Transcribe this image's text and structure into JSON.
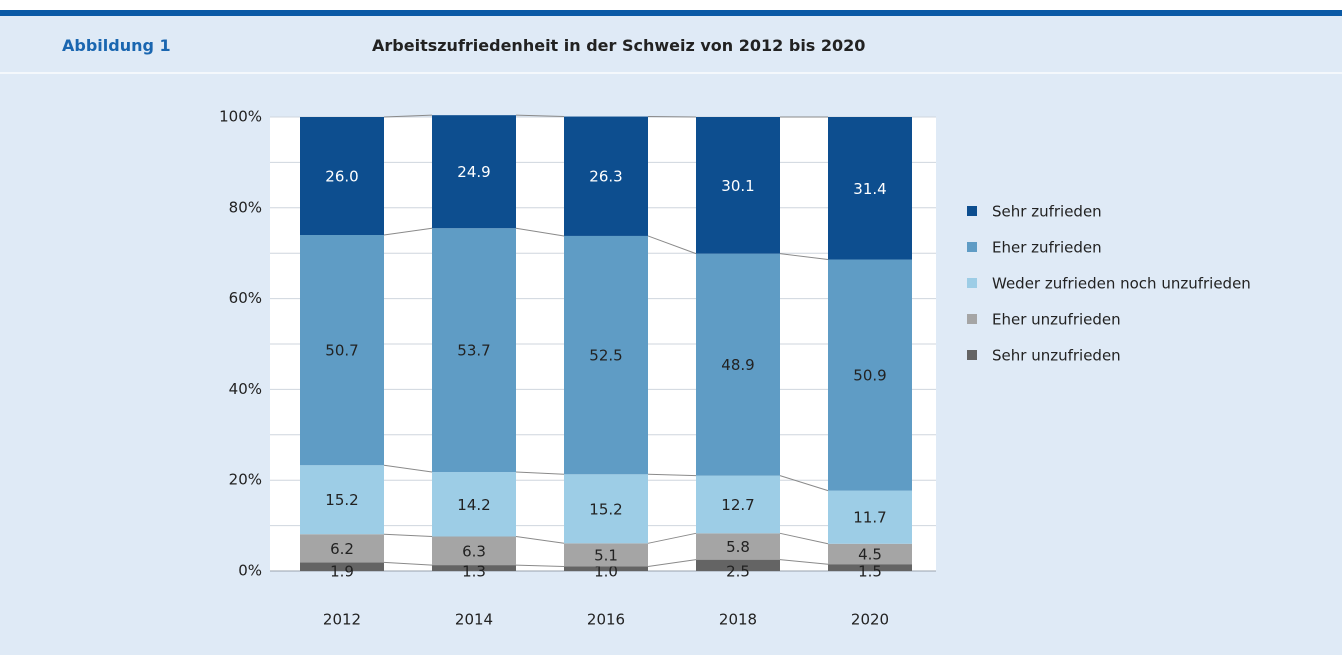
{
  "header": {
    "label": "Abbildung 1"
  },
  "chart_data": {
    "type": "stacked_bar",
    "title": "Arbeitszufriedenheit in der Schweiz von 2012 bis 2020",
    "categories": [
      "2012",
      "2014",
      "2016",
      "2018",
      "2020"
    ],
    "series": [
      {
        "name": "Sehr unzufrieden",
        "color": "#646464",
        "values": [
          1.9,
          1.3,
          1.0,
          2.5,
          1.5
        ],
        "value_labels": [
          "1.9",
          "1.3",
          "1.0",
          "2.5",
          "1.5"
        ]
      },
      {
        "name": "Eher unzufrieden",
        "color": "#a5a5a5",
        "values": [
          6.2,
          6.3,
          5.1,
          5.8,
          4.5
        ],
        "value_labels": [
          "6.2",
          "6.3",
          "5.1",
          "5.8",
          "4.5"
        ]
      },
      {
        "name": "Weder zufrieden noch unzufrieden",
        "color": "#9dcde6",
        "values": [
          15.2,
          14.2,
          15.2,
          12.7,
          11.7
        ],
        "value_labels": [
          "15.2",
          "14.2",
          "15.2",
          "12.7",
          "11.7"
        ]
      },
      {
        "name": "Eher zufrieden",
        "color": "#5f9cc5",
        "values": [
          50.7,
          53.7,
          52.5,
          48.9,
          50.9
        ],
        "value_labels": [
          "50.7",
          "53.7",
          "52.5",
          "48.9",
          "50.9"
        ]
      },
      {
        "name": "Sehr zufrieden",
        "color": "#0d4e8f",
        "values": [
          26.0,
          24.9,
          26.3,
          30.1,
          31.4
        ],
        "value_labels": [
          "26.0",
          "24.9",
          "26.3",
          "30.1",
          "31.4"
        ]
      }
    ],
    "ylim": [
      0,
      100
    ],
    "yticks": [
      {
        "value": 0,
        "label": "0%"
      },
      {
        "value": 20,
        "label": "20%"
      },
      {
        "value": 40,
        "label": "40%"
      },
      {
        "value": 60,
        "label": "60%"
      },
      {
        "value": 80,
        "label": "80%"
      },
      {
        "value": 100,
        "label": "100%"
      }
    ],
    "minor_yticks": [
      10,
      30,
      50,
      70,
      90
    ],
    "grid": true,
    "legend": "right"
  }
}
